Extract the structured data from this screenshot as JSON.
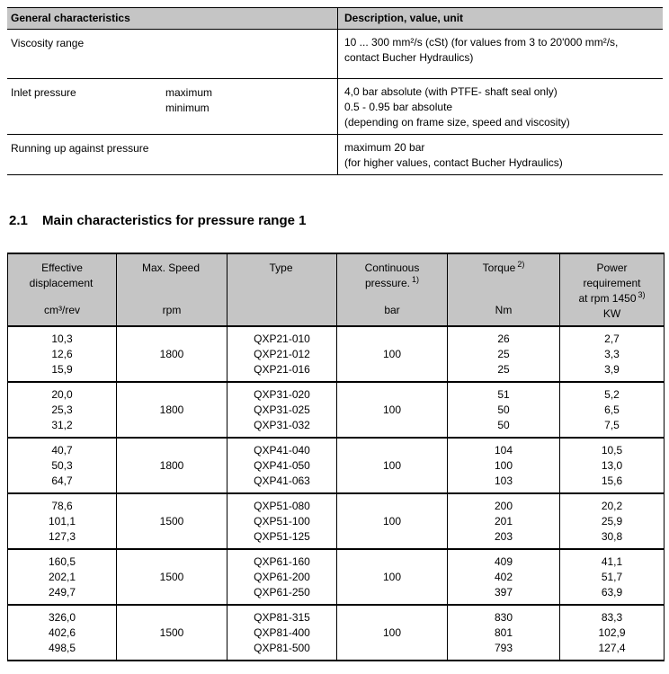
{
  "colors": {
    "header_bg": "#c5c5c5",
    "border": "#000000",
    "text": "#000000",
    "page_bg": "#ffffff"
  },
  "table1": {
    "header": [
      "General characteristics",
      "Description, value, unit"
    ],
    "rows": [
      {
        "label": "Viscosity range",
        "sub": "",
        "value": "10 ... 300 mm²/s (cSt) (for values from 3 to 20'000 mm²/s,\ncontact Bucher Hydraulics)"
      },
      {
        "label": "Inlet pressure",
        "sub": "maximum\nminimum",
        "value": "4,0 bar absolute (with PTFE- shaft seal only)\n0.5 - 0.95 bar absolute\n(depending on frame size, speed and viscosity)"
      },
      {
        "label": "Running up against pressure",
        "sub": "",
        "value": "maximum 20 bar\n(for higher values, contact Bucher Hydraulics)"
      }
    ]
  },
  "section": {
    "number": "2.1",
    "title": "Main characteristics for pressure range 1"
  },
  "table2": {
    "columns": [
      {
        "title": "Effective\ndisplacement",
        "sup": "",
        "unit": "cm³/rev"
      },
      {
        "title": "Max. Speed",
        "sup": "",
        "unit": "rpm"
      },
      {
        "title": "Type",
        "sup": "",
        "unit": ""
      },
      {
        "title": "Continuous\npressure.",
        "sup": "1)",
        "unit": "bar"
      },
      {
        "title": "Torque",
        "sup": "2)",
        "unit": "Nm"
      },
      {
        "title": "Power\nrequirement\nat rpm 1450",
        "sup": "3)",
        "unit": "KW"
      }
    ],
    "groups": [
      {
        "displacement": "10,3\n12,6\n15,9",
        "speed": "1800",
        "types": "QXP21-010\nQXP21-012\nQXP21-016",
        "pressure": "100",
        "torque": "26\n25\n25",
        "power": "2,7\n3,3\n3,9"
      },
      {
        "displacement": "20,0\n25,3\n31,2",
        "speed": "1800",
        "types": "QXP31-020\nQXP31-025\nQXP31-032",
        "pressure": "100",
        "torque": "51\n50\n50",
        "power": "5,2\n6,5\n7,5"
      },
      {
        "displacement": "40,7\n50,3\n64,7",
        "speed": "1800",
        "types": "QXP41-040\nQXP41-050\nQXP41-063",
        "pressure": "100",
        "torque": "104\n100\n103",
        "power": "10,5\n13,0\n15,6"
      },
      {
        "displacement": "78,6\n101,1\n127,3",
        "speed": "1500",
        "types": "QXP51-080\nQXP51-100\nQXP51-125",
        "pressure": "100",
        "torque": "200\n201\n203",
        "power": "20,2\n25,9\n30,8"
      },
      {
        "displacement": "160,5\n202,1\n249,7",
        "speed": "1500",
        "types": "QXP61-160\nQXP61-200\nQXP61-250",
        "pressure": "100",
        "torque": "409\n402\n397",
        "power": "41,1\n51,7\n63,9"
      },
      {
        "displacement": "326,0\n402,6\n498,5",
        "speed": "1500",
        "types": "QXP81-315\nQXP81-400\nQXP81-500",
        "pressure": "100",
        "torque": "830\n801\n793",
        "power": "83,3\n102,9\n127,4"
      }
    ]
  }
}
